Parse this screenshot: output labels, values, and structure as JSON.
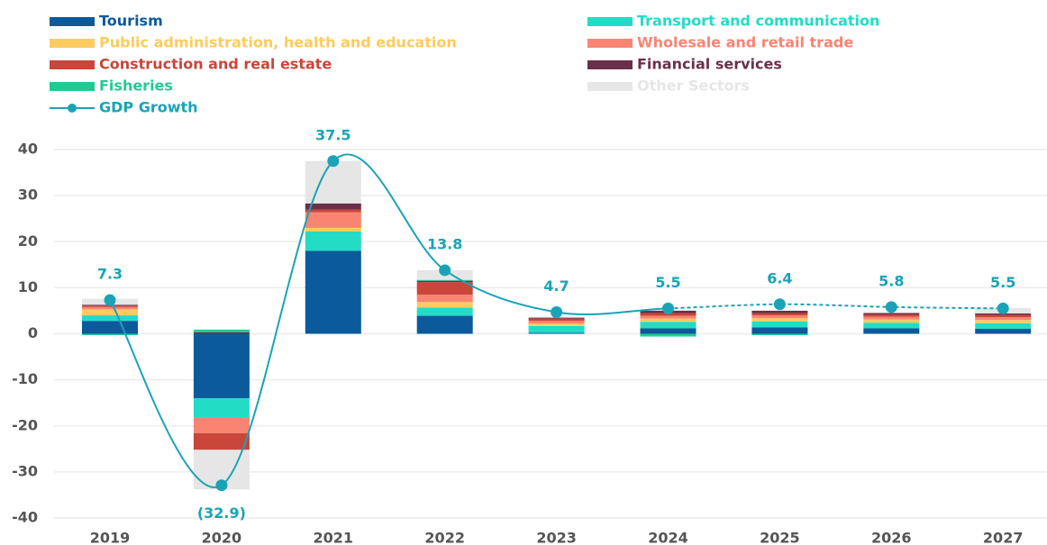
{
  "chart_data": {
    "type": "stacked_bar_line",
    "categories": [
      "2019",
      "2020",
      "2021",
      "2022",
      "2023",
      "2024",
      "2025",
      "2026",
      "2027"
    ],
    "series": [
      {
        "name": "Tourism",
        "color": "#0b5a9b",
        "values": [
          2.8,
          -14,
          18,
          3.9,
          0.2,
          1.2,
          1.4,
          1.2,
          1.1
        ]
      },
      {
        "name": "Transport and communication",
        "color": "#22dcc6",
        "values": [
          1.2,
          -4.2,
          4.2,
          1.8,
          1.5,
          1.4,
          1.3,
          1.2,
          1.2
        ]
      },
      {
        "name": "Public administration, health and education",
        "color": "#fdcb5f",
        "values": [
          1.3,
          0,
          0.8,
          1.2,
          0.5,
          0.7,
          0.7,
          0.7,
          0.7
        ]
      },
      {
        "name": "Wholesale and retail trade",
        "color": "#f98472",
        "values": [
          0.5,
          -3.4,
          3.4,
          1.6,
          0.6,
          0.6,
          0.6,
          0.6,
          0.6
        ]
      },
      {
        "name": "Construction and real estate",
        "color": "#c8463a",
        "values": [
          0.3,
          -3.6,
          0.6,
          2.7,
          0.5,
          0.6,
          0.5,
          0.5,
          0.5
        ]
      },
      {
        "name": "Financial services",
        "color": "#6b3049",
        "values": [
          0.2,
          0.3,
          1.3,
          0.3,
          0.2,
          0.5,
          0.5,
          0.3,
          0.3
        ]
      },
      {
        "name": "Fisheries",
        "color": "#23c993",
        "values": [
          -0.3,
          0.6,
          0,
          0.2,
          0,
          -0.6,
          -0.3,
          0,
          0
        ]
      },
      {
        "name": "Other Sectors",
        "color": "#e6e6e6",
        "values": [
          1.3,
          -8.6,
          9.2,
          2.1,
          0.2,
          0.2,
          0.1,
          0.1,
          1.2
        ]
      }
    ],
    "line": {
      "name": "GDP Growth",
      "color": "#1aa3b6",
      "values": [
        7.3,
        -32.9,
        37.5,
        13.8,
        4.7,
        5.5,
        6.4,
        5.8,
        5.5
      ],
      "value_labels": [
        "7.3",
        "(32.9)",
        "37.5",
        "13.8",
        "4.7",
        "5.5",
        "6.4",
        "5.8",
        "5.5"
      ],
      "dashed_from": "2024"
    },
    "ylim": [
      -40,
      40
    ],
    "yticks": [
      -40,
      -30,
      -20,
      -10,
      0,
      10,
      20,
      30,
      40
    ],
    "grid": true
  }
}
